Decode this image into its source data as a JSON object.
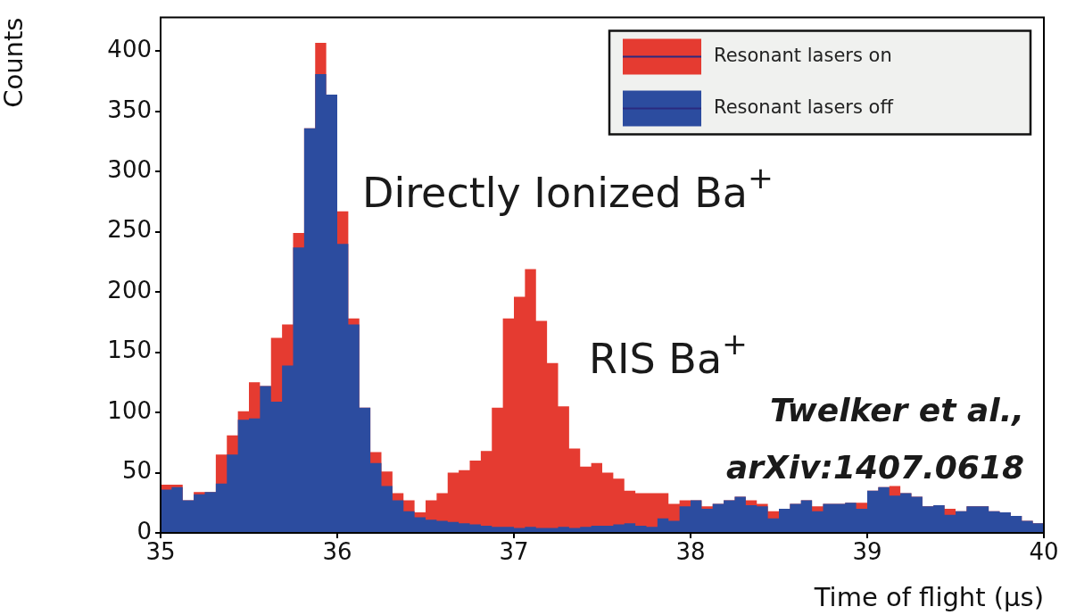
{
  "chart_data": {
    "type": "histogram",
    "xlabel": "Time of flight (µs)",
    "ylabel": "Counts",
    "bins": [
      35,
      35.0625,
      35.125,
      35.1875,
      35.25,
      35.3125,
      35.375,
      35.4375,
      35.5,
      35.5625,
      35.625,
      35.6875,
      35.75,
      35.8125,
      35.875,
      35.9375,
      36,
      36.0625,
      36.125,
      36.1875,
      36.25,
      36.3125,
      36.375,
      36.4375,
      36.5,
      36.5625,
      36.625,
      36.6875,
      36.75,
      36.8125,
      36.875,
      36.9375,
      37,
      37.0625,
      37.125,
      37.1875,
      37.25,
      37.3125,
      37.375,
      37.4375,
      37.5,
      37.5625,
      37.625,
      37.6875,
      37.75,
      37.8125,
      37.875,
      37.9375,
      38,
      38.0625,
      38.125,
      38.1875,
      38.25,
      38.3125,
      38.375,
      38.4375,
      38.5,
      38.5625,
      38.625,
      38.6875,
      38.75,
      38.8125,
      38.875,
      38.9375,
      39,
      39.0625,
      39.125,
      39.1875,
      39.25,
      39.3125,
      39.375,
      39.4375,
      39.5,
      39.5625,
      39.625,
      39.6875,
      39.75,
      39.8125,
      39.875,
      39.9375,
      40
    ],
    "series": [
      {
        "name": "Resonant lasers on",
        "color": "#e53b31",
        "values": [
          40,
          40,
          27,
          34,
          34,
          65,
          81,
          101,
          125,
          122,
          162,
          173,
          249,
          336,
          407,
          364,
          267,
          178,
          104,
          67,
          51,
          33,
          27,
          17,
          27,
          33,
          50,
          52,
          60,
          68,
          104,
          178,
          196,
          219,
          176,
          141,
          105,
          70,
          55,
          58,
          50,
          45,
          35,
          33,
          33,
          33,
          24,
          27,
          27,
          22,
          24,
          27,
          30,
          27,
          24,
          18,
          20,
          24,
          27,
          22,
          24,
          24,
          25,
          25,
          35,
          38,
          39,
          33,
          30,
          22,
          23,
          20,
          18,
          22,
          22,
          18,
          17,
          14,
          10,
          8
        ]
      },
      {
        "name": "Resonant lasers off",
        "color": "#2c4c9f",
        "values": [
          36,
          38,
          27,
          32,
          34,
          41,
          65,
          94,
          95,
          122,
          109,
          139,
          237,
          336,
          381,
          364,
          240,
          173,
          104,
          58,
          39,
          27,
          18,
          13,
          11,
          10,
          9,
          8,
          7,
          6,
          5,
          5,
          4,
          5,
          4,
          4,
          5,
          4,
          5,
          6,
          6,
          7,
          8,
          6,
          5,
          12,
          10,
          22,
          27,
          20,
          24,
          27,
          30,
          23,
          22,
          12,
          20,
          24,
          27,
          18,
          24,
          24,
          25,
          20,
          35,
          38,
          31,
          33,
          30,
          22,
          23,
          15,
          18,
          22,
          22,
          18,
          17,
          14,
          10,
          8
        ]
      }
    ],
    "xlim": [
      35,
      40
    ],
    "xticks": [
      35,
      36,
      37,
      38,
      39,
      40
    ],
    "ylim": [
      0,
      428
    ],
    "yticks": [
      0,
      50,
      100,
      150,
      200,
      250,
      300,
      350,
      400
    ],
    "legend": "top right",
    "annotations": [
      "Directly Ionized Ba$^{+}$",
      "RIS Ba$^{+}$",
      "Twelker et al.,\narXiv:1407.0618"
    ]
  }
}
